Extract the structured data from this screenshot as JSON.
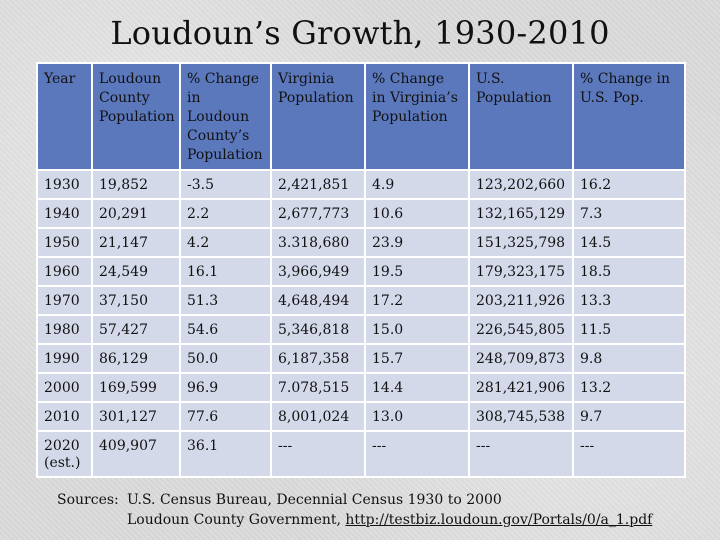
{
  "title": "Loudoun’s Growth, 1930-2010",
  "table": {
    "headers": [
      "Year",
      "Loudoun County Population",
      "% Change in Loudoun County’s Population",
      "Virginia Population",
      "% Change in Virginia’s Population",
      "U.S. Population",
      "% Change in U.S. Pop."
    ],
    "rows": [
      [
        "1930",
        "19,852",
        "-3.5",
        "2,421,851",
        "4.9",
        "123,202,660",
        "16.2"
      ],
      [
        "1940",
        "20,291",
        "2.2",
        "2,677,773",
        "10.6",
        "132,165,129",
        "7.3"
      ],
      [
        "1950",
        "21,147",
        "4.2",
        "3.318,680",
        "23.9",
        "151,325,798",
        "14.5"
      ],
      [
        "1960",
        "24,549",
        "16.1",
        "3,966,949",
        "19.5",
        "179,323,175",
        "18.5"
      ],
      [
        "1970",
        "37,150",
        "51.3",
        "4,648,494",
        "17.2",
        "203,211,926",
        "13.3"
      ],
      [
        "1980",
        "57,427",
        "54.6",
        "5,346,818",
        "15.0",
        "226,545,805",
        "11.5"
      ],
      [
        "1990",
        "86,129",
        "50.0",
        "6,187,358",
        "15.7",
        "248,709,873",
        "9.8"
      ],
      [
        "2000",
        "169,599",
        "96.9",
        "7.078,515",
        "14.4",
        "281,421,906",
        "13.2"
      ],
      [
        "2010",
        "301,127",
        "77.6",
        "8,001,024",
        "13.0",
        "308,745,538",
        "9.7"
      ],
      [
        "2020 (est.)",
        "409,907",
        "36.1",
        "---",
        "---",
        "---",
        "---"
      ]
    ]
  },
  "sources": {
    "label": "Sources:",
    "line1": "U.S. Census Bureau, Decennial Census 1930 to 2000",
    "line2_text": "Loudoun County Government, ",
    "line2_link": "http://testbiz.loudoun.gov/Portals/0/a_1.pdf"
  },
  "colors": {
    "header_bg": "#5b78bd",
    "cell_bg": "#d4d9ea",
    "border": "#ffffff"
  }
}
